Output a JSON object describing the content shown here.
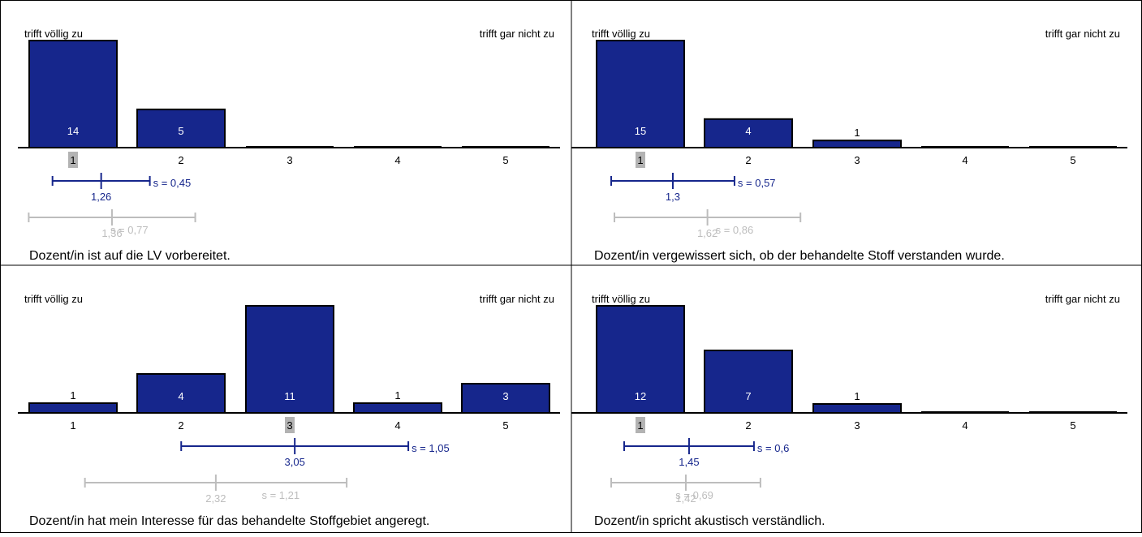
{
  "labels": {
    "left": "trifft völlig zu",
    "right": "trifft gar nicht zu"
  },
  "colors": {
    "bar": "#16268c",
    "bar_stroke": "#000000",
    "own_mean": "#16268c",
    "reference_mean": "#bdbdbd",
    "median_marker": "#b3b3b3"
  },
  "chart_data": [
    {
      "type": "bar",
      "title": "Dozent/in ist auf die LV vorbereitet.",
      "categories": [
        "1",
        "2",
        "3",
        "4",
        "5"
      ],
      "values": [
        14,
        5,
        0,
        0,
        0
      ],
      "ylim": [
        0,
        14
      ],
      "median": "1",
      "mean": {
        "value": 1.26,
        "label": "1,26",
        "sd": 0.45,
        "sd_label": "s = 0,45"
      },
      "reference_mean": {
        "value": 1.36,
        "label": "1,36",
        "sd": 0.77,
        "sd_label": "s = 0,77"
      }
    },
    {
      "type": "bar",
      "title": "Dozent/in vergewissert sich, ob der behandelte Stoff verstanden wurde.",
      "categories": [
        "1",
        "2",
        "3",
        "4",
        "5"
      ],
      "values": [
        15,
        4,
        1,
        0,
        0
      ],
      "ylim": [
        0,
        15
      ],
      "median": "1",
      "mean": {
        "value": 1.3,
        "label": "1,3",
        "sd": 0.57,
        "sd_label": "s = 0,57"
      },
      "reference_mean": {
        "value": 1.62,
        "label": "1,62",
        "sd": 0.86,
        "sd_label": "s = 0,86"
      }
    },
    {
      "type": "bar",
      "title": "Dozent/in hat mein Interesse für das behandelte Stoffgebiet angeregt.",
      "categories": [
        "1",
        "2",
        "3",
        "4",
        "5"
      ],
      "values": [
        1,
        4,
        11,
        1,
        3
      ],
      "ylim": [
        0,
        11
      ],
      "median": "3",
      "mean": {
        "value": 3.05,
        "label": "3,05",
        "sd": 1.05,
        "sd_label": "s = 1,05"
      },
      "reference_mean": {
        "value": 2.32,
        "label": "2,32",
        "sd": 1.21,
        "sd_label": "s = 1,21"
      }
    },
    {
      "type": "bar",
      "title": "Dozent/in spricht akustisch verständlich.",
      "categories": [
        "1",
        "2",
        "3",
        "4",
        "5"
      ],
      "values": [
        12,
        7,
        1,
        0,
        0
      ],
      "ylim": [
        0,
        12
      ],
      "median": "1",
      "mean": {
        "value": 1.45,
        "label": "1,45",
        "sd": 0.6,
        "sd_label": "s = 0,6"
      },
      "reference_mean": {
        "value": 1.42,
        "label": "1,42",
        "sd": 0.69,
        "sd_label": "s = 0,69"
      }
    }
  ]
}
